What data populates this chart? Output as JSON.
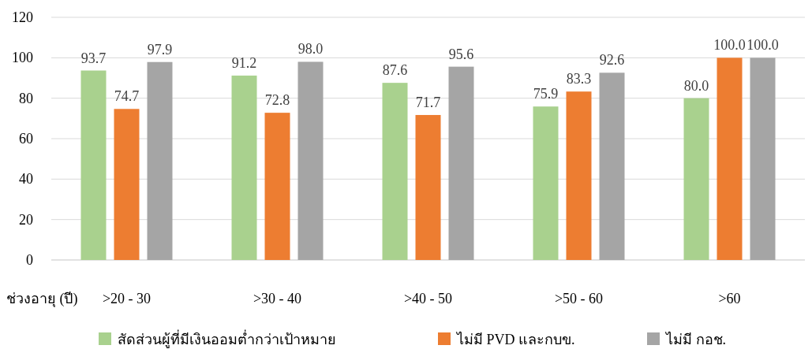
{
  "chart_data": {
    "type": "bar",
    "xlabel": "ช่วงอายุ (ปี)",
    "categories": [
      ">20 - 30",
      ">30 - 40",
      ">40 - 50",
      ">50 - 60",
      ">60"
    ],
    "series": [
      {
        "name": "สัดส่วนผู้ที่มีเงินออมต่ำกว่าเป้าหมาย",
        "color": "#a9d18e",
        "values": [
          93.7,
          91.2,
          87.6,
          75.9,
          80.0
        ],
        "value_labels": [
          "93.7",
          "91.2",
          "87.6",
          "75.9",
          "80.0"
        ]
      },
      {
        "name": "ไม่มี PVD และกบข.",
        "color": "#ed7d31",
        "values": [
          74.7,
          72.8,
          71.7,
          83.3,
          100.0
        ],
        "value_labels": [
          "74.7",
          "72.8",
          "71.7",
          "83.3",
          "100.0"
        ]
      },
      {
        "name": "ไม่มี กอช.",
        "color": "#a5a5a5",
        "values": [
          97.9,
          98.0,
          95.6,
          92.6,
          100.0
        ],
        "value_labels": [
          "97.9",
          "98.0",
          "95.6",
          "92.6",
          "100.0"
        ]
      }
    ],
    "ylim": [
      0,
      120
    ],
    "yticks": [
      0,
      20,
      40,
      60,
      80,
      100,
      120
    ],
    "grid": "y",
    "legend": "bottom"
  }
}
